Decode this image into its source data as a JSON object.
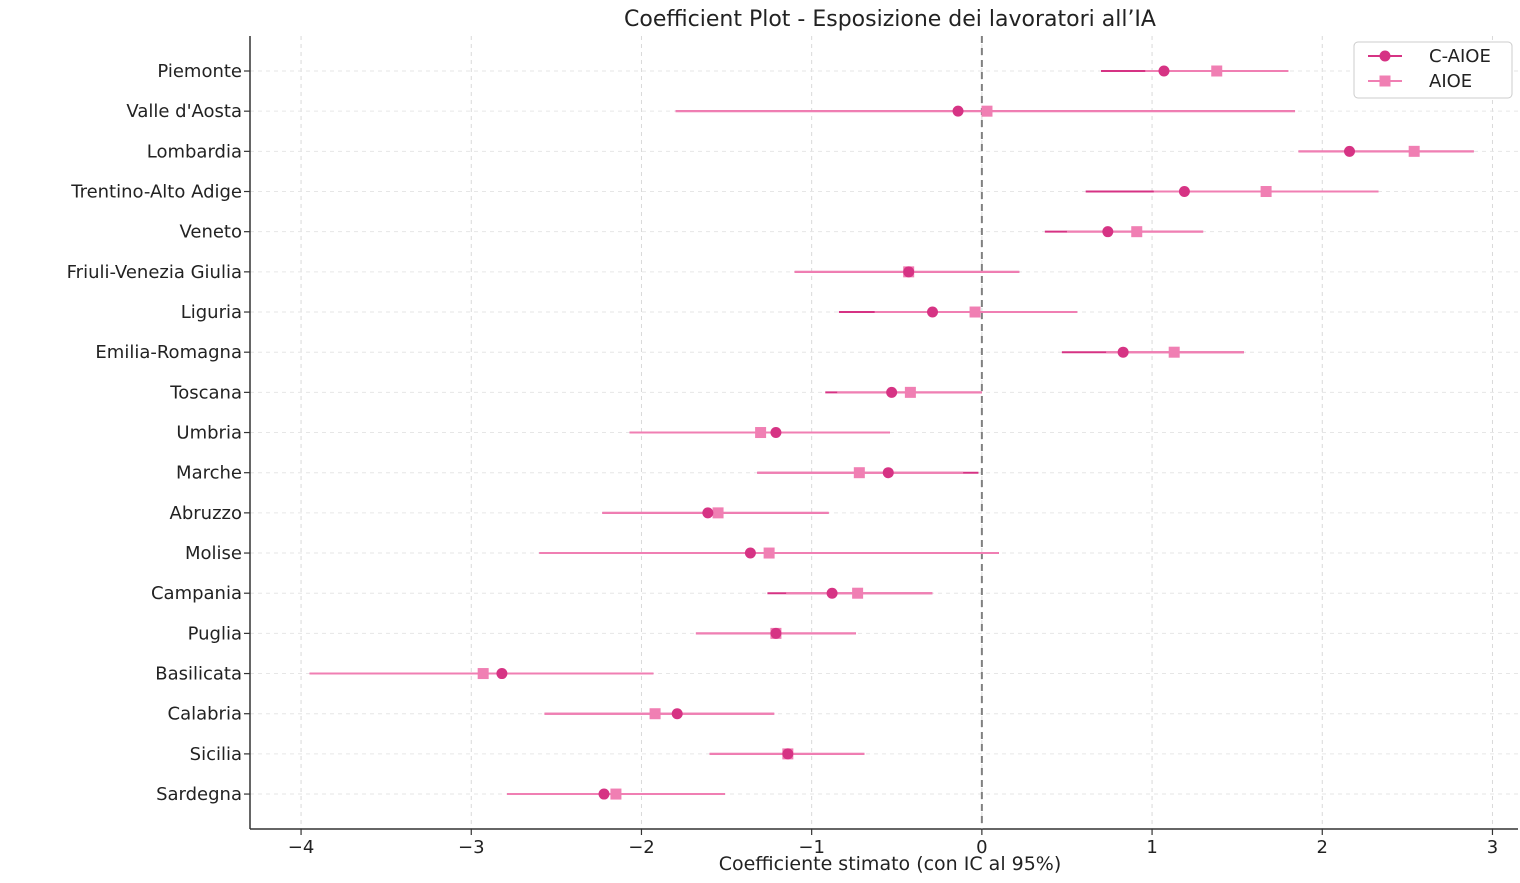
{
  "chart_data": {
    "type": "scatter",
    "title": "Coefficient Plot - Esposizione dei lavoratori all’IA",
    "xlabel": "Coefficiente stimato (con IC al 95%)",
    "ylabel": "",
    "xlim": [
      -4.3,
      3.15
    ],
    "x_ticks": [
      -4,
      -3,
      -2,
      -1,
      0,
      1,
      2,
      3
    ],
    "x_tick_labels": [
      "−4",
      "−3",
      "−2",
      "−1",
      "0",
      "1",
      "2",
      "3"
    ],
    "grid": true,
    "reference_line_x": 0,
    "legend_position": "top-right",
    "categories": [
      "Piemonte",
      "Valle d'Aosta",
      "Lombardia",
      "Trentino-Alto Adige",
      "Veneto",
      "Friuli-Venezia Giulia",
      "Liguria",
      "Emilia-Romagna",
      "Toscana",
      "Umbria",
      "Marche",
      "Abruzzo",
      "Molise",
      "Campania",
      "Puglia",
      "Basilicata",
      "Calabria",
      "Sicilia",
      "Sardegna"
    ],
    "series": [
      {
        "name": "C-AIOE",
        "marker": "circle",
        "color": "#d63384",
        "values": [
          1.07,
          -0.14,
          2.16,
          1.19,
          0.74,
          -0.43,
          -0.29,
          0.83,
          -0.53,
          -1.21,
          -0.55,
          -1.61,
          -1.36,
          -0.88,
          -1.21,
          -2.82,
          -1.79,
          -1.14,
          -2.22
        ],
        "ci_low": [
          0.7,
          -1.8,
          1.86,
          0.61,
          0.37,
          -1.1,
          -0.84,
          0.47,
          -0.92,
          -2.07,
          -1.32,
          -2.23,
          -2.6,
          -1.26,
          -1.68,
          -3.95,
          -2.57,
          -1.6,
          -2.79
        ],
        "ci_high": [
          1.8,
          1.84,
          2.89,
          2.33,
          1.3,
          0.22,
          0.56,
          1.54,
          0.0,
          -0.54,
          -0.02,
          -0.9,
          0.1,
          -0.29,
          -0.74,
          -1.93,
          -1.22,
          -0.69,
          -1.51
        ]
      },
      {
        "name": "AIOE",
        "marker": "square",
        "color": "#f07fb3",
        "values": [
          1.38,
          0.03,
          2.54,
          1.67,
          0.91,
          -0.43,
          -0.04,
          1.13,
          -0.42,
          -1.3,
          -0.72,
          -1.55,
          -1.25,
          -0.73,
          -1.21,
          -2.93,
          -1.92,
          -1.14,
          -2.15
        ],
        "ci_low": [
          0.96,
          -1.8,
          1.86,
          1.01,
          0.5,
          -1.1,
          -0.63,
          0.73,
          -0.85,
          -2.07,
          -1.32,
          -2.23,
          -2.6,
          -1.15,
          -1.68,
          -3.95,
          -2.57,
          -1.6,
          -2.79
        ],
        "ci_high": [
          1.8,
          1.84,
          2.89,
          2.33,
          1.3,
          0.22,
          0.56,
          1.54,
          0.0,
          -0.54,
          -0.11,
          -0.9,
          0.1,
          -0.29,
          -0.74,
          -1.93,
          -1.22,
          -0.69,
          -1.51
        ]
      }
    ]
  }
}
